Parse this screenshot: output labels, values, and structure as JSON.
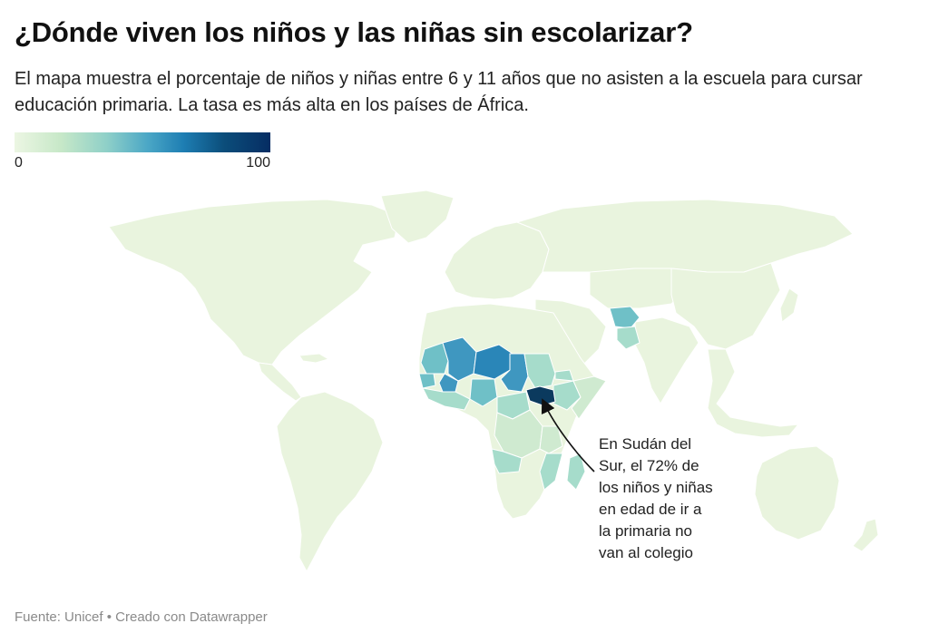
{
  "title": "¿Dónde viven los niños y las niñas sin escolarizar?",
  "subtitle": "El mapa muestra el porcentaje de niños y niñas entre 6 y 11 años que no asisten a la escuela para cursar educación primaria. La tasa es más alta en los países de África.",
  "legend": {
    "min": "0",
    "max": "100",
    "scale_colors": [
      "#ecf6e3",
      "#8fd0c8",
      "#1e7eb3",
      "#062d63"
    ]
  },
  "annotation": {
    "lines": [
      "En Sudán del",
      "Sur, el 72% de",
      "los niños y niñas",
      "en edad de ir a",
      "la primaria no",
      "van al colegio"
    ],
    "country": "Sudán del Sur",
    "value": 72
  },
  "footer": {
    "source": "Fuente: Unicef",
    "separator": " • ",
    "credit": "Creado con Datawrapper"
  },
  "colors": {
    "land_default": "#e9f4de",
    "low": "#cfead0",
    "mid_low": "#a6dccb",
    "mid": "#6fc0c7",
    "mid_high": "#3f97c0",
    "high": "#2a86b8",
    "very_high": "#0b3a5e"
  }
}
